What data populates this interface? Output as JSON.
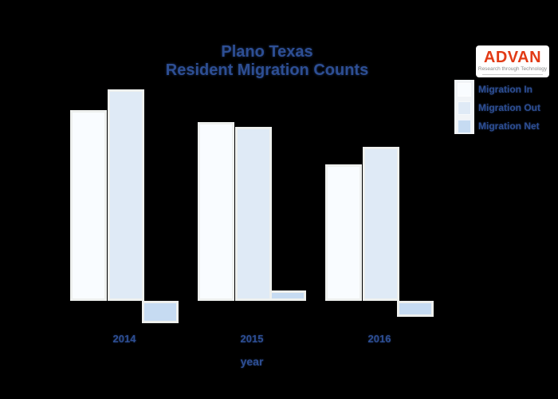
{
  "header": {
    "title_line1": "Plano Texas",
    "title_line2": "Resident Migration Counts"
  },
  "logo": {
    "name": "ADVAN",
    "tagline": "Research through Technology",
    "brand_color": "#e23a15",
    "card_color": "#ffffff"
  },
  "colors": {
    "background": "#000000",
    "text": "#2d4e93",
    "legend_strip": "#f1f4f7",
    "bar_border": "#eef0ee"
  },
  "chart_data": {
    "type": "bar",
    "title": "Plano Texas Resident Migration Counts",
    "xlabel": "year",
    "ylabel": "",
    "categories": [
      "2014",
      "2015",
      "2016"
    ],
    "series": [
      {
        "name": "Migration In",
        "color": "#f9fcff",
        "values": [
          239,
          224,
          171
        ]
      },
      {
        "name": "Migration Out",
        "color": "#dfeaf6",
        "values": [
          265,
          218,
          193
        ]
      },
      {
        "name": "Migration Net",
        "color": "#c6dbf2",
        "values": [
          -28,
          13,
          -20
        ]
      }
    ],
    "value_units": "relative (pixel-estimated; no y-axis tick labels visible)",
    "baseline": 0,
    "grid": false,
    "y_axis_visible": false,
    "legend_position": "top-right"
  }
}
